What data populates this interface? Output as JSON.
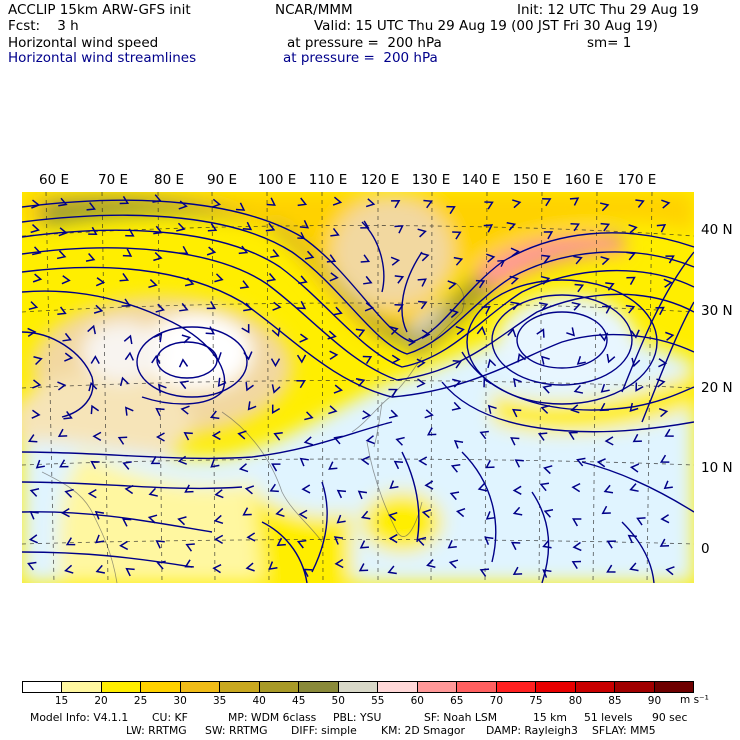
{
  "header": {
    "model": "ACCLIP 15km ARW-GFS init",
    "center": "NCAR/MMM",
    "init": "Init: 12 UTC Thu 29 Aug 19",
    "fcst": "Fcst:    3 h",
    "valid": "Valid: 15 UTC Thu 29 Aug 19 (00 JST Fri 30 Aug 19)",
    "field1": "Horizontal wind speed",
    "field1_level": "at pressure =  200 hPa",
    "smoothing": "sm= 1",
    "field2": "Horizontal wind streamlines",
    "field2_level": "at pressure =  200 hPa"
  },
  "map": {
    "lon_labels": [
      "60 E",
      "70 E",
      "80 E",
      "90 E",
      "100 E",
      "110 E",
      "120 E",
      "130 E",
      "140 E",
      "150 E",
      "160 E",
      "170 E"
    ],
    "lat_labels": [
      "40 N",
      "30 N",
      "20 N",
      "10 N",
      "0"
    ],
    "region": "Asia / Western Pacific",
    "jet_core_speed_ms": 60,
    "anticyclone_centers": [
      "Tibetan Plateau",
      "Western Pacific near 160 E 25 N"
    ]
  },
  "colorbar": {
    "ticks": [
      "15",
      "20",
      "25",
      "30",
      "35",
      "40",
      "45",
      "50",
      "55",
      "60",
      "65",
      "70",
      "75",
      "80",
      "85",
      "90"
    ],
    "unit": "m s⁻¹",
    "colors": [
      "#ffffff",
      "#fff7a0",
      "#ffee00",
      "#ffd200",
      "#f0bc18",
      "#c8a820",
      "#a89a28",
      "#8a8a3a",
      "#d8d8c8",
      "#ffd8d8",
      "#ff9898",
      "#ff6060",
      "#ff2020",
      "#e80000",
      "#c80000",
      "#a00000",
      "#6e0000"
    ]
  },
  "footer": {
    "line1": [
      "Model Info: V4.1.1",
      "CU: KF",
      "MP: WDM 6class",
      "PBL: YSU",
      "SF: Noah LSM",
      "15 km",
      "51 levels",
      "90 sec"
    ],
    "line2": [
      "LW: RRTMG",
      "SW: RRTMG",
      "DIFF: simple",
      "KM: 2D Smagor",
      "DAMP: Rayleigh3",
      "SFLAY: MM5"
    ]
  }
}
